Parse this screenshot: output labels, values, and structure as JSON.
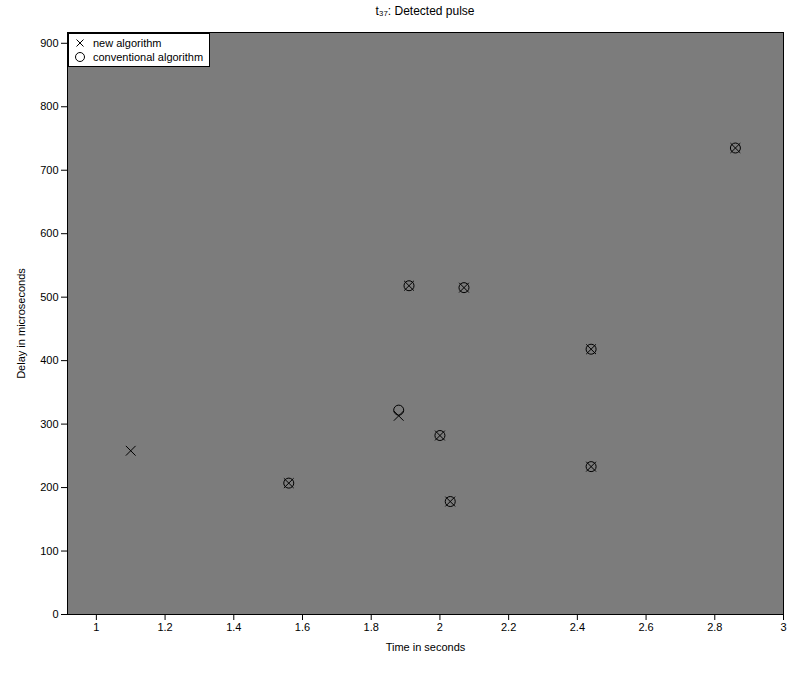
{
  "chart_data": {
    "type": "scatter",
    "title": "t₃₇: Detected pulse",
    "x_label": "Time in seconds",
    "y_label": "Delay in microseconds",
    "xlim": [
      0.916,
      3
    ],
    "xticks": [
      1,
      1.2,
      1.4,
      1.6,
      1.8,
      2,
      2.2,
      2.4,
      2.6,
      2.8,
      3
    ],
    "ylim": [
      0,
      917
    ],
    "yticks": [
      0,
      100,
      200,
      300,
      400,
      500,
      600,
      700,
      800,
      900
    ],
    "grid": false,
    "legend": "upper left",
    "series": [
      {
        "name": "new algorithm",
        "marker": "x",
        "color": "#000000",
        "x": [
          1.1,
          1.56,
          1.88,
          1.91,
          2.0,
          2.03,
          2.07,
          2.44,
          2.44,
          2.86
        ],
        "values": [
          258,
          207,
          313,
          518,
          282,
          178,
          515,
          418,
          233,
          735
        ]
      },
      {
        "name": "conventional algorithm",
        "marker": "o",
        "color": "#000000",
        "x": [
          1.56,
          1.88,
          1.91,
          2.0,
          2.03,
          2.07,
          2.44,
          2.44,
          2.86
        ],
        "values": [
          207,
          322,
          518,
          282,
          178,
          515,
          418,
          233,
          735
        ]
      }
    ]
  }
}
